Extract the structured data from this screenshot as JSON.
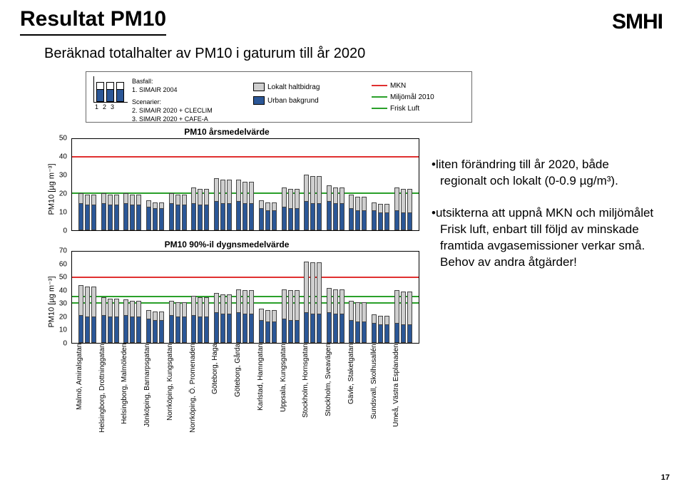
{
  "title": "Resultat PM10",
  "logo": "SMHI",
  "subtitle": "Beräknad totalhalter av PM10 i gaturum till år 2020",
  "page_number": "17",
  "legend": {
    "bar_numbers": [
      "1",
      "2",
      "3"
    ],
    "basfall_head": "Basfall:",
    "basfall_1": "1. SIMAIR 2004",
    "scenarier_head": "Scenarier:",
    "scenarier_2": "2. SIMAIR 2020 + CLECLIM",
    "scenarier_3": "3. SIMAIR 2020 + CAFE-A",
    "local_label": "Lokalt haltbidrag",
    "urban_label": "Urban bakgrund",
    "mkn_label": "MKN",
    "miljomal_label": "Miljömål 2010",
    "friskluft_label": "Frisk Luft",
    "local_color": "#cfcfcf",
    "urban_color": "#2b5797",
    "mkn_color": "#e03030",
    "miljomal_color": "#2aa02a",
    "friskluft_color": "#2aa02a",
    "border_color": "#6a6a6a"
  },
  "bullets": {
    "b1_line1": "•liten förändring till år 2020, både",
    "b1_line2": "regionalt och lokalt (0-0.9 µg/m³).",
    "b2_line1": "•utsikterna att uppnå MKN och miljömålet",
    "b2_line2": "Frisk luft, enbart till följd av minskade",
    "b2_line3": "framtida avgasemissioner verkar små.",
    "b2_line4": "Behov av andra åtgärder!"
  },
  "cities": [
    "Malmö, Amiralsgatan",
    "Helsingborg, Drottninggatan",
    "Helsingborg, Malmöleden",
    "Jönköping, Barnarpsgatan",
    "Norrköping, Kungsgatan",
    "Norrköping, Ö. Promenaden",
    "Göteborg, Haga",
    "Göteborg, Gårda",
    "Karlstad, Hamngatan",
    "Uppsala, Kungsgatan",
    "Stockholm, Hornsgatan",
    "Stockholm, Sveavägen",
    "Gävle, Staketgatan",
    "Sundsvall, Skolhusallén",
    "Umeå, Västra Esplanaden"
  ],
  "chart1": {
    "title": "PM10 årsmedelvärde",
    "ylabel": "PM10 [µg m⁻³]",
    "ymax": 50,
    "yticks": [
      0,
      10,
      20,
      30,
      40,
      50
    ],
    "mkn": 40,
    "miljomal": 20,
    "friskluft": 20,
    "urban": [
      [
        14,
        13,
        13
      ],
      [
        14,
        13,
        13
      ],
      [
        14,
        13,
        13
      ],
      [
        12,
        11,
        11
      ],
      [
        14,
        13,
        13
      ],
      [
        14,
        13,
        13
      ],
      [
        15,
        14,
        14
      ],
      [
        15,
        14,
        14
      ],
      [
        11,
        10,
        10
      ],
      [
        12,
        11,
        11
      ],
      [
        15,
        14,
        14
      ],
      [
        15,
        14,
        14
      ],
      [
        11,
        10,
        10
      ],
      [
        10,
        9,
        9
      ],
      [
        10,
        9,
        9
      ]
    ],
    "local": [
      [
        5,
        5,
        5
      ],
      [
        5,
        5,
        5
      ],
      [
        5,
        5,
        5
      ],
      [
        3,
        3,
        3
      ],
      [
        5,
        5,
        5
      ],
      [
        8,
        8,
        8
      ],
      [
        12,
        12,
        12
      ],
      [
        11,
        11,
        11
      ],
      [
        4,
        4,
        4
      ],
      [
        10,
        10,
        10
      ],
      [
        14,
        14,
        14
      ],
      [
        8,
        8,
        8
      ],
      [
        7,
        7,
        7
      ],
      [
        4,
        4,
        4
      ],
      [
        12,
        12,
        12
      ]
    ]
  },
  "chart2": {
    "title": "PM10 90%-il dygnsmedelvärde",
    "ylabel": "PM10 [µg m⁻³]",
    "ymax": 70,
    "yticks": [
      0,
      10,
      20,
      30,
      40,
      50,
      60,
      70
    ],
    "mkn": 50,
    "miljomal": 35,
    "friskluft": 30,
    "urban": [
      [
        20,
        19,
        19
      ],
      [
        20,
        19,
        19
      ],
      [
        20,
        19,
        19
      ],
      [
        17,
        16,
        16
      ],
      [
        20,
        19,
        19
      ],
      [
        20,
        19,
        19
      ],
      [
        22,
        21,
        21
      ],
      [
        22,
        21,
        21
      ],
      [
        16,
        15,
        15
      ],
      [
        17,
        16,
        16
      ],
      [
        22,
        21,
        21
      ],
      [
        22,
        21,
        21
      ],
      [
        16,
        15,
        15
      ],
      [
        14,
        13,
        13
      ],
      [
        14,
        13,
        13
      ]
    ],
    "local": [
      [
        22,
        22,
        22
      ],
      [
        13,
        13,
        13
      ],
      [
        11,
        11,
        11
      ],
      [
        6,
        6,
        6
      ],
      [
        10,
        10,
        10
      ],
      [
        14,
        14,
        14
      ],
      [
        14,
        14,
        14
      ],
      [
        17,
        17,
        17
      ],
      [
        8,
        8,
        8
      ],
      [
        22,
        22,
        22
      ],
      [
        38,
        38,
        38
      ],
      [
        18,
        18,
        18
      ],
      [
        14,
        14,
        14
      ],
      [
        6,
        6,
        6
      ],
      [
        24,
        24,
        24
      ]
    ]
  }
}
